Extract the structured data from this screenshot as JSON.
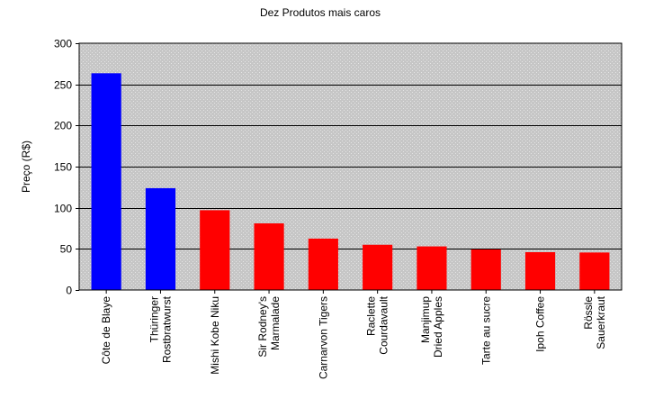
{
  "chart_data": {
    "type": "bar",
    "title": "Dez Produtos mais caros",
    "ylabel": "Preço (R$)",
    "xlabel": "",
    "ylim": [
      0,
      300
    ],
    "yticks": [
      0,
      50,
      100,
      150,
      200,
      250,
      300
    ],
    "grid": true,
    "legend": "none",
    "categories": [
      "Côte de Blaye",
      "Thüringer Rostbratwurst",
      "Mishi Kobe Niku",
      "Sir Rodney's Marmalade",
      "Carnarvon Tigers",
      "Raclette Courdavault",
      "Manjimup Dried Apples",
      "Tarte au sucre",
      "Ipoh Coffee",
      "Rössle Sauerkraut"
    ],
    "category_lines": [
      [
        "Côte de Blaye"
      ],
      [
        "Thüringer",
        "Rostbratwurst"
      ],
      [
        "Mishi Kobe Niku"
      ],
      [
        "Sir Rodney's",
        "Marmalade"
      ],
      [
        "Carnarvon Tigers"
      ],
      [
        "Raclette",
        "Courdavault"
      ],
      [
        "Manjimup",
        "Dried Apples"
      ],
      [
        "Tarte au sucre"
      ],
      [
        "Ipoh Coffee"
      ],
      [
        "Rössle",
        "Sauerkraut"
      ]
    ],
    "values": [
      263.5,
      123.79,
      97,
      81,
      62.5,
      55,
      53,
      49.3,
      46,
      45.6
    ],
    "bar_colors": [
      "#0000ff",
      "#0000ff",
      "#ff0000",
      "#ff0000",
      "#ff0000",
      "#ff0000",
      "#ff0000",
      "#ff0000",
      "#ff0000",
      "#ff0000"
    ],
    "plot_background": "#c8c8c8",
    "grid_color": "#000000"
  }
}
